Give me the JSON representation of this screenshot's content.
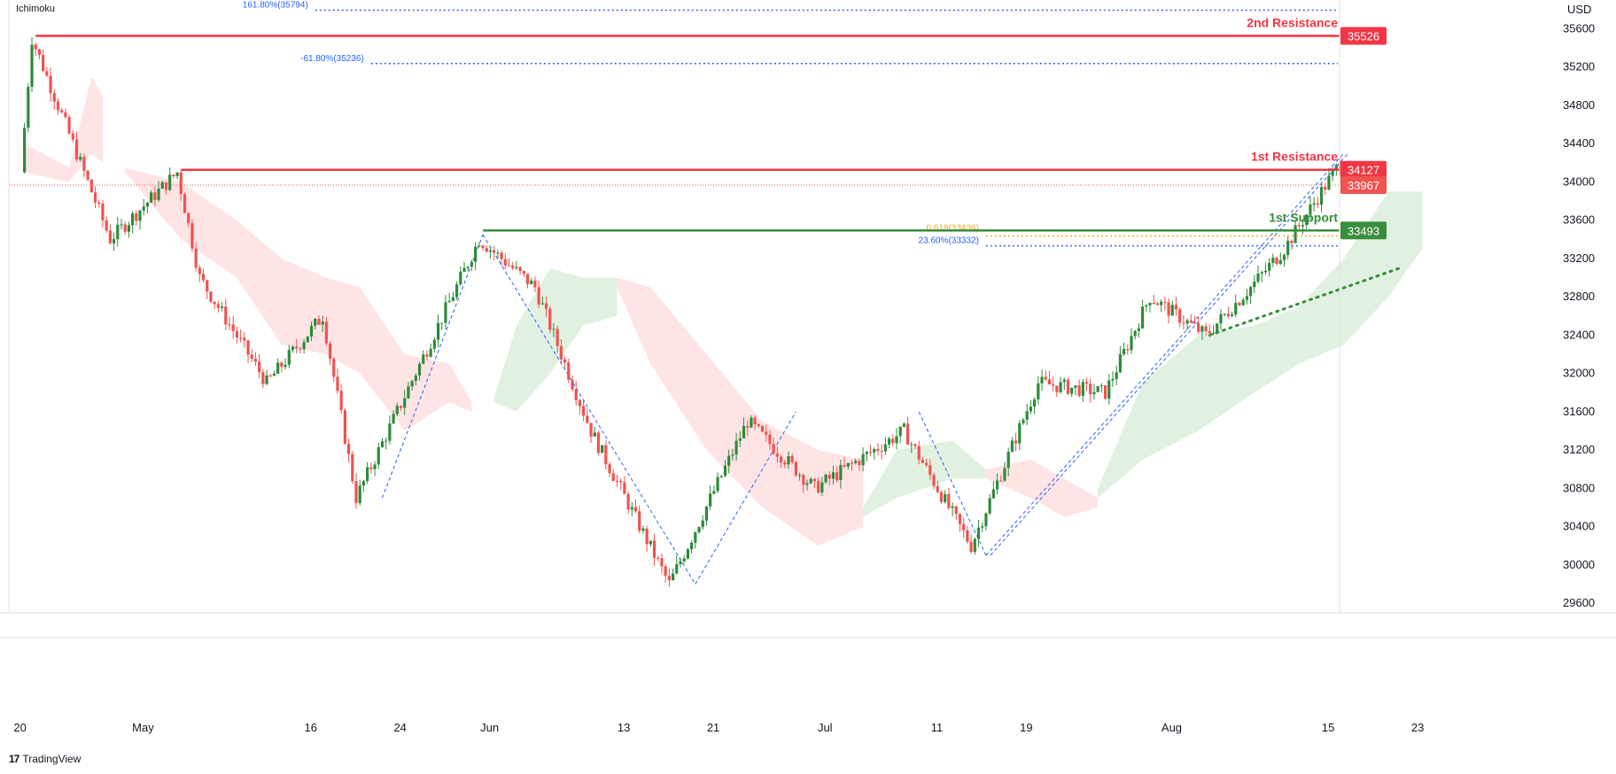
{
  "indicator_label": "Ichimoku",
  "currency_label": "USD",
  "brand": {
    "name": "TradingView",
    "logo_icon": "tradingview-logo-icon"
  },
  "colors": {
    "up": "#2e8b3a",
    "down": "#ef5350",
    "resistance": "#f23645",
    "support": "#388e3c",
    "fib_blue": "#2962ff",
    "fib_orange": "#f5a623",
    "cloud_green": "#c8e6c9",
    "cloud_red": "#ffcdd2"
  },
  "chart_data": {
    "type": "candlestick",
    "y_range": [
      29500,
      35900
    ],
    "y_ticks": [
      29600,
      30000,
      30400,
      30800,
      31200,
      31600,
      32000,
      32400,
      32800,
      33200,
      33600,
      34000,
      34400,
      34800,
      35200,
      35600
    ],
    "x_ticks": [
      {
        "label": "20",
        "date": "2022-04-20"
      },
      {
        "label": "May",
        "date": "2022-05-01"
      },
      {
        "label": "16",
        "date": "2022-05-16"
      },
      {
        "label": "24",
        "date": "2022-05-24"
      },
      {
        "label": "Jun",
        "date": "2022-06-01"
      },
      {
        "label": "13",
        "date": "2022-06-13"
      },
      {
        "label": "21",
        "date": "2022-06-21"
      },
      {
        "label": "Jul",
        "date": "2022-07-01"
      },
      {
        "label": "11",
        "date": "2022-07-11"
      },
      {
        "label": "19",
        "date": "2022-07-19"
      },
      {
        "label": "Aug",
        "date": "2022-08-01"
      },
      {
        "label": "15",
        "date": "2022-08-15"
      },
      {
        "label": "23",
        "date": "2022-08-23"
      }
    ],
    "anchors": [
      {
        "date": "2022-04-20",
        "close": 34100
      },
      {
        "date": "2022-04-21",
        "close": 35500
      },
      {
        "date": "2022-04-28",
        "close": 33400
      },
      {
        "date": "2022-05-04",
        "close": 34100
      },
      {
        "date": "2022-05-06",
        "close": 33000
      },
      {
        "date": "2022-05-12",
        "close": 31900
      },
      {
        "date": "2022-05-17",
        "close": 32600
      },
      {
        "date": "2022-05-20",
        "close": 30700
      },
      {
        "date": "2022-05-31",
        "close": 33400
      },
      {
        "date": "2022-06-05",
        "close": 32900
      },
      {
        "date": "2022-06-10",
        "close": 31400
      },
      {
        "date": "2022-06-17",
        "close": 29800
      },
      {
        "date": "2022-06-24",
        "close": 31500
      },
      {
        "date": "2022-06-30",
        "close": 30800
      },
      {
        "date": "2022-07-08",
        "close": 31400
      },
      {
        "date": "2022-07-14",
        "close": 30200
      },
      {
        "date": "2022-07-20",
        "close": 31900
      },
      {
        "date": "2022-07-26",
        "close": 31800
      },
      {
        "date": "2022-07-30",
        "close": 32800
      },
      {
        "date": "2022-08-04",
        "close": 32400
      },
      {
        "date": "2022-08-08",
        "close": 32900
      },
      {
        "date": "2022-08-11",
        "close": 33300
      },
      {
        "date": "2022-08-16",
        "close": 34200
      },
      {
        "date": "2022-08-18",
        "close": 33967
      }
    ],
    "last_price": 33967,
    "levels": [
      {
        "name": "2nd Resistance",
        "value": 35526,
        "badge": "35526",
        "kind": "resistance",
        "start_date": "2022-04-21"
      },
      {
        "name": "1st Resistance",
        "value": 34127,
        "badge": "34127",
        "kind": "resistance",
        "start_date": "2022-05-04"
      },
      {
        "name": "1st Support",
        "value": 33493,
        "badge": "33493",
        "kind": "support",
        "start_date": "2022-05-31"
      }
    ],
    "fib_lines": [
      {
        "label": "161.80%(35794)",
        "value": 35794,
        "color": "blue",
        "start_date": "2022-05-16"
      },
      {
        "label": "-61.80%(35236)",
        "value": 35236,
        "color": "blue",
        "start_date": "2022-05-21"
      },
      {
        "label": "0.618(33436)",
        "value": 33436,
        "color": "orange",
        "start_date": "2022-07-15"
      },
      {
        "label": "23.60%(33332)",
        "value": 33332,
        "color": "blue",
        "start_date": "2022-07-15"
      }
    ],
    "trend_lines": [
      {
        "from": {
          "date": "2022-05-22",
          "value": 30700
        },
        "to": {
          "date": "2022-05-31",
          "value": 33450
        }
      },
      {
        "from": {
          "date": "2022-05-31",
          "value": 33450
        },
        "to": {
          "date": "2022-06-19",
          "value": 29800
        }
      },
      {
        "from": {
          "date": "2022-06-19",
          "value": 29800
        },
        "to": {
          "date": "2022-06-28",
          "value": 31600
        }
      },
      {
        "from": {
          "date": "2022-07-09",
          "value": 31600
        },
        "to": {
          "date": "2022-07-15",
          "value": 30100
        }
      },
      {
        "from": {
          "date": "2022-07-15",
          "value": 30100
        },
        "to": {
          "date": "2022-08-16",
          "value": 34300
        }
      }
    ],
    "support_trend": {
      "from": {
        "date": "2022-08-04",
        "value": 32400
      },
      "to": {
        "date": "2022-08-21",
        "value": 33100
      }
    },
    "cloud_segments": [
      {
        "color": "red",
        "points": [
          [
            "2022-04-20",
            34100,
            34400
          ],
          [
            "2022-04-24",
            34000,
            34150
          ],
          [
            "2022-04-26",
            34300,
            35100
          ],
          [
            "2022-04-27",
            34200,
            34900
          ]
        ]
      },
      {
        "color": "red",
        "points": [
          [
            "2022-04-29",
            34100,
            34150
          ],
          [
            "2022-05-04",
            33400,
            34000
          ],
          [
            "2022-05-09",
            33000,
            33600
          ],
          [
            "2022-05-13",
            32300,
            33200
          ],
          [
            "2022-05-17",
            32200,
            33000
          ],
          [
            "2022-05-20",
            32000,
            32900
          ],
          [
            "2022-05-24",
            31400,
            32200
          ],
          [
            "2022-05-28",
            31700,
            32100
          ],
          [
            "2022-05-30",
            31600,
            31700
          ]
        ]
      },
      {
        "color": "green",
        "points": [
          [
            "2022-06-01",
            31700,
            31750
          ],
          [
            "2022-06-03",
            31600,
            32500
          ],
          [
            "2022-06-06",
            32000,
            33100
          ],
          [
            "2022-06-09",
            32500,
            33000
          ],
          [
            "2022-06-12",
            32600,
            33000
          ]
        ]
      },
      {
        "color": "red",
        "points": [
          [
            "2022-06-12",
            32900,
            33000
          ],
          [
            "2022-06-15",
            32100,
            32900
          ],
          [
            "2022-06-20",
            31200,
            32200
          ],
          [
            "2022-06-25",
            30600,
            31500
          ],
          [
            "2022-06-30",
            30200,
            31200
          ],
          [
            "2022-07-04",
            30400,
            31100
          ]
        ]
      },
      {
        "color": "green",
        "points": [
          [
            "2022-07-04",
            30500,
            30600
          ],
          [
            "2022-07-07",
            30700,
            31200
          ],
          [
            "2022-07-12",
            30900,
            31300
          ],
          [
            "2022-07-15",
            30900,
            31000
          ]
        ]
      },
      {
        "color": "red",
        "points": [
          [
            "2022-07-15",
            30900,
            31000
          ],
          [
            "2022-07-19",
            30700,
            31100
          ],
          [
            "2022-07-22",
            30500,
            30900
          ],
          [
            "2022-07-25",
            30600,
            30700
          ]
        ]
      },
      {
        "color": "green",
        "points": [
          [
            "2022-07-25",
            30700,
            30800
          ],
          [
            "2022-07-29",
            31100,
            31900
          ],
          [
            "2022-08-03",
            31400,
            32400
          ],
          [
            "2022-08-08",
            31800,
            32500
          ],
          [
            "2022-08-12",
            32100,
            32700
          ],
          [
            "2022-08-16",
            32300,
            33200
          ],
          [
            "2022-08-20",
            32800,
            33900
          ],
          [
            "2022-08-23",
            33300,
            33900
          ]
        ]
      }
    ]
  }
}
